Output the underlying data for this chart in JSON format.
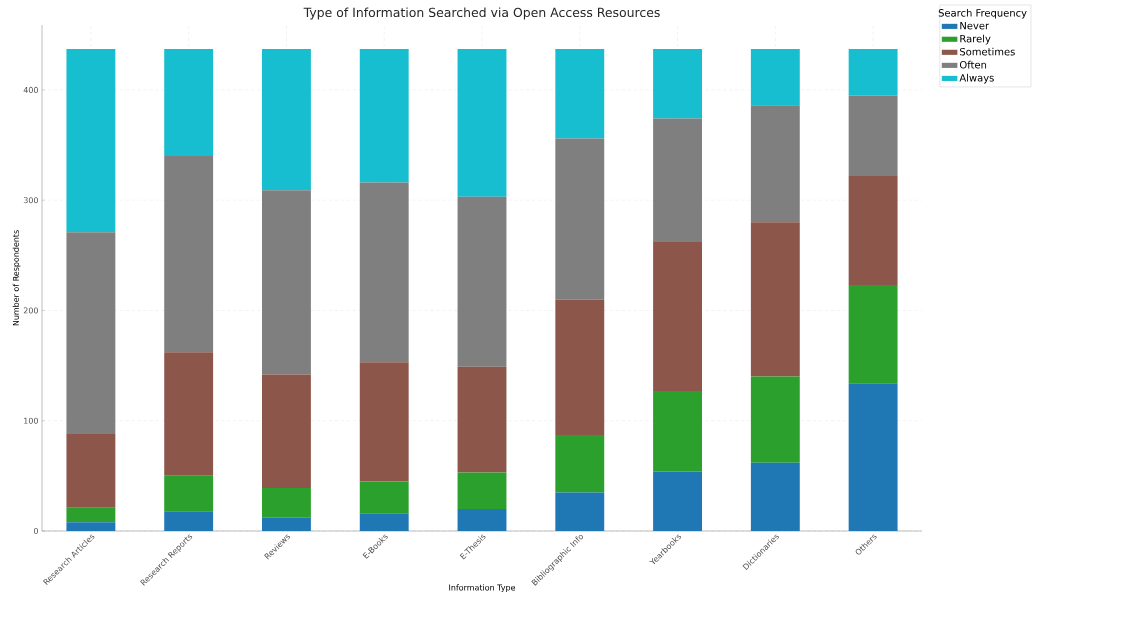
{
  "chart_data": {
    "type": "bar",
    "stacked": true,
    "title": "Type of Information Searched via Open Access Resources",
    "xlabel": "Information Type",
    "ylabel": "Number of Respondents",
    "legend_title": "Search Frequency",
    "categories": [
      "Research Articles",
      "Research Reports",
      "Reviews",
      "E-Books",
      "E-Thesis",
      "Bibliographic Info",
      "Yearbooks",
      "Dictionaries",
      "Others"
    ],
    "series": [
      {
        "name": "Never",
        "color": "#1f77b4",
        "values": [
          8,
          18,
          12,
          16,
          20,
          35,
          54,
          62,
          134
        ]
      },
      {
        "name": "Rarely",
        "color": "#2ca02c",
        "values": [
          13,
          32,
          27,
          29,
          33,
          52,
          73,
          78,
          89
        ]
      },
      {
        "name": "Sometimes",
        "color": "#8c564b",
        "values": [
          67,
          112,
          103,
          108,
          96,
          123,
          135,
          140,
          99
        ]
      },
      {
        "name": "Often",
        "color": "#7f7f7f",
        "values": [
          183,
          178,
          167,
          163,
          154,
          146,
          112,
          106,
          73
        ]
      },
      {
        "name": "Always",
        "color": "#17becf",
        "values": [
          166,
          97,
          128,
          121,
          134,
          81,
          63,
          51,
          42
        ]
      }
    ],
    "ylim": [
      0,
      458.85
    ],
    "yticks": [
      0,
      100,
      200,
      300,
      400
    ],
    "grid": true,
    "legend": "top right"
  }
}
